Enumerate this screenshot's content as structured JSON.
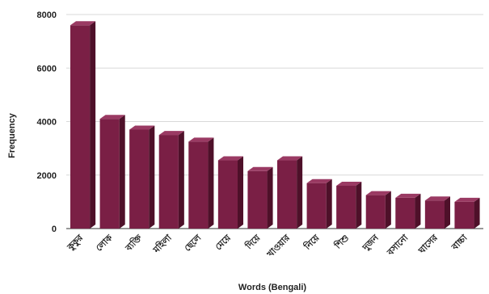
{
  "chart_data": {
    "type": "bar",
    "title": "",
    "xlabel": "Words (Bengali)",
    "ylabel": "Frequency",
    "ylim": [
      0,
      8000
    ],
    "yticks": [
      "0",
      "2000",
      "4000",
      "6000",
      "8000"
    ],
    "grid": true,
    "style": "3d",
    "bar_color": "#7a1f45",
    "categories": [
      "কুকুর",
      "লোক",
      "ব্যক্তি",
      "মহিলা",
      "ছেলে",
      "মেয়ে",
      "দিয়ে",
      "খাওয়ার",
      "নিয়ে",
      "শিশু",
      "দুজন",
      "বসানো",
      "ঘাসের",
      "বাচ্চা"
    ],
    "values": [
      7600,
      4100,
      3700,
      3500,
      3250,
      2550,
      2150,
      2550,
      1700,
      1600,
      1250,
      1150,
      1050,
      1000
    ]
  }
}
